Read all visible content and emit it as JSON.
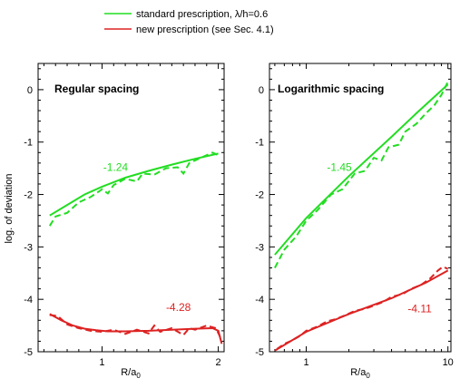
{
  "legend": {
    "entries": [
      {
        "label": "standard prescription, λ/h=0.6",
        "color": "#22dd22"
      },
      {
        "label": "new prescription (see Sec. 4.1)",
        "color": "#dd2222"
      }
    ]
  },
  "ylabel": "log. of deviation",
  "chart_data": [
    {
      "type": "line",
      "title": "Regular spacing",
      "xlabel": "R/a0",
      "ylabel": "log. of deviation",
      "xscale": "linear",
      "xlim": [
        0.45,
        2.05
      ],
      "ylim": [
        -5,
        0.5
      ],
      "xticks_major": [
        1,
        2
      ],
      "yticks": [
        0,
        -1,
        -2,
        -3,
        -4,
        -5
      ],
      "annotations": [
        {
          "text": "-1.24",
          "x": 1.01,
          "y": -1.55,
          "color": "#22dd22"
        },
        {
          "text": "-4.28",
          "x": 1.55,
          "y": -4.22,
          "color": "#dd2222"
        }
      ],
      "series": [
        {
          "color": "#22dd22",
          "style": "solid",
          "x": [
            0.55,
            0.7,
            0.85,
            1.0,
            1.2,
            1.4,
            1.6,
            1.8,
            2.0
          ],
          "y": [
            -2.4,
            -2.2,
            -2.0,
            -1.85,
            -1.68,
            -1.55,
            -1.43,
            -1.32,
            -1.22
          ]
        },
        {
          "color": "#22dd22",
          "style": "dashed",
          "x": [
            0.55,
            0.6,
            0.7,
            0.8,
            0.9,
            1.0,
            1.05,
            1.1,
            1.2,
            1.3,
            1.35,
            1.45,
            1.55,
            1.65,
            1.7,
            1.75,
            1.85,
            1.95,
            2.0
          ],
          "y": [
            -2.6,
            -2.42,
            -2.35,
            -2.15,
            -2.05,
            -1.9,
            -1.98,
            -1.82,
            -1.7,
            -1.75,
            -1.6,
            -1.62,
            -1.5,
            -1.48,
            -1.6,
            -1.4,
            -1.3,
            -1.2,
            -1.25
          ]
        },
        {
          "color": "#dd2222",
          "style": "solid",
          "x": [
            0.55,
            0.65,
            0.75,
            0.85,
            0.95,
            1.05,
            1.2,
            1.4,
            1.6,
            1.8,
            1.95,
            2.0,
            2.03
          ],
          "y": [
            -4.28,
            -4.4,
            -4.5,
            -4.56,
            -4.59,
            -4.61,
            -4.61,
            -4.6,
            -4.58,
            -4.56,
            -4.55,
            -4.6,
            -4.85
          ]
        },
        {
          "color": "#dd2222",
          "style": "dashed",
          "x": [
            0.55,
            0.62,
            0.7,
            0.8,
            0.9,
            1.0,
            1.1,
            1.2,
            1.3,
            1.4,
            1.45,
            1.5,
            1.6,
            1.7,
            1.75,
            1.8,
            1.9,
            1.98,
            2.03
          ],
          "y": [
            -4.3,
            -4.32,
            -4.48,
            -4.55,
            -4.6,
            -4.62,
            -4.58,
            -4.66,
            -4.58,
            -4.65,
            -4.5,
            -4.62,
            -4.55,
            -4.68,
            -4.55,
            -4.58,
            -4.5,
            -4.55,
            -4.78
          ]
        }
      ]
    },
    {
      "type": "line",
      "title": "Logarithmic spacing",
      "xlabel": "R/a0",
      "ylabel": "",
      "xscale": "log",
      "xlim": [
        0.55,
        10.5
      ],
      "ylim": [
        -5,
        0.5
      ],
      "xticks_major": [
        1,
        10
      ],
      "yticks": [
        0,
        -1,
        -2,
        -3,
        -4,
        -5
      ],
      "annotations": [
        {
          "text": "-1.45",
          "x": 1.4,
          "y": -1.55,
          "color": "#22dd22"
        },
        {
          "text": "-4.11",
          "x": 5.2,
          "y": -4.25,
          "color": "#dd2222"
        }
      ],
      "series": [
        {
          "color": "#22dd22",
          "style": "solid",
          "x": [
            0.6,
            1.0,
            2.0,
            4.0,
            6.0,
            10.0
          ],
          "y": [
            -3.15,
            -2.45,
            -1.65,
            -0.9,
            -0.45,
            0.1
          ]
        },
        {
          "color": "#22dd22",
          "style": "dashed",
          "x": [
            0.6,
            0.7,
            0.85,
            1.0,
            1.2,
            1.5,
            1.8,
            2.2,
            2.6,
            3.0,
            3.4,
            3.8,
            4.5,
            5.0,
            6.0,
            7.0,
            8.0,
            9.0,
            10.0
          ],
          "y": [
            -3.4,
            -3.05,
            -2.8,
            -2.5,
            -2.3,
            -2.0,
            -1.9,
            -1.6,
            -1.55,
            -1.3,
            -1.35,
            -1.1,
            -1.05,
            -0.8,
            -0.65,
            -0.45,
            -0.3,
            -0.1,
            0.15
          ]
        },
        {
          "color": "#dd2222",
          "style": "solid",
          "x": [
            0.6,
            1.0,
            2.0,
            4.0,
            7.0,
            10.0
          ],
          "y": [
            -4.98,
            -4.62,
            -4.28,
            -3.98,
            -3.68,
            -3.45
          ]
        },
        {
          "color": "#dd2222",
          "style": "dashed",
          "x": [
            0.62,
            0.7,
            0.8,
            0.9,
            1.0,
            1.2,
            1.4,
            1.6,
            1.9,
            2.2,
            2.6,
            3.0,
            3.5,
            4.0,
            4.8,
            5.5,
            6.5,
            7.5,
            8.5,
            9.2,
            10.0
          ],
          "y": [
            -4.95,
            -4.85,
            -4.78,
            -4.7,
            -4.6,
            -4.52,
            -4.42,
            -4.38,
            -4.3,
            -4.22,
            -4.18,
            -4.12,
            -4.05,
            -3.95,
            -3.9,
            -3.8,
            -3.72,
            -3.6,
            -3.45,
            -3.38,
            -3.42
          ]
        }
      ]
    }
  ]
}
